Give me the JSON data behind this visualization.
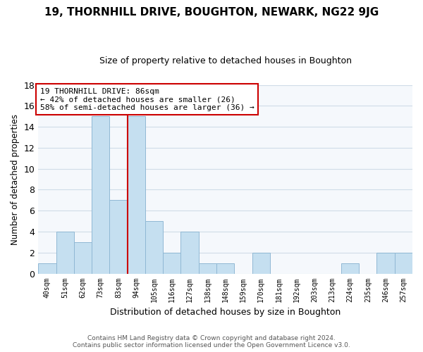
{
  "title": "19, THORNHILL DRIVE, BOUGHTON, NEWARK, NG22 9JG",
  "subtitle": "Size of property relative to detached houses in Boughton",
  "xlabel": "Distribution of detached houses by size in Boughton",
  "ylabel": "Number of detached properties",
  "bin_labels": [
    "40sqm",
    "51sqm",
    "62sqm",
    "73sqm",
    "83sqm",
    "94sqm",
    "105sqm",
    "116sqm",
    "127sqm",
    "138sqm",
    "148sqm",
    "159sqm",
    "170sqm",
    "181sqm",
    "192sqm",
    "203sqm",
    "213sqm",
    "224sqm",
    "235sqm",
    "246sqm",
    "257sqm"
  ],
  "bar_heights": [
    1,
    4,
    3,
    15,
    7,
    15,
    5,
    2,
    4,
    1,
    1,
    0,
    2,
    0,
    0,
    0,
    0,
    1,
    0,
    2,
    2
  ],
  "bar_color": "#c5dff0",
  "bar_edge_color": "#90b8d4",
  "reference_line_color": "#cc0000",
  "annotation_line1": "19 THORNHILL DRIVE: 86sqm",
  "annotation_line2": "← 42% of detached houses are smaller (26)",
  "annotation_line3": "58% of semi-detached houses are larger (36) →",
  "annotation_box_edge_color": "#cc0000",
  "ylim": [
    0,
    18
  ],
  "yticks": [
    0,
    2,
    4,
    6,
    8,
    10,
    12,
    14,
    16,
    18
  ],
  "footer_line1": "Contains HM Land Registry data © Crown copyright and database right 2024.",
  "footer_line2": "Contains public sector information licensed under the Open Government Licence v3.0.",
  "bg_color": "#ffffff",
  "plot_bg_color": "#f5f8fc",
  "grid_color": "#d0dce8"
}
